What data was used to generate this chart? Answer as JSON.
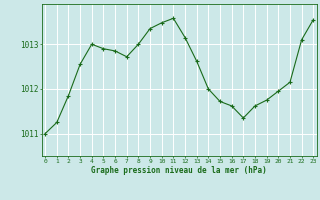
{
  "x": [
    0,
    1,
    2,
    3,
    4,
    5,
    6,
    7,
    8,
    9,
    10,
    11,
    12,
    13,
    14,
    15,
    16,
    17,
    18,
    19,
    20,
    21,
    22,
    23
  ],
  "y": [
    1011.0,
    1011.25,
    1011.85,
    1012.55,
    1013.0,
    1012.9,
    1012.85,
    1012.72,
    1013.0,
    1013.35,
    1013.48,
    1013.58,
    1013.15,
    1012.62,
    1012.0,
    1011.72,
    1011.62,
    1011.35,
    1011.62,
    1011.75,
    1011.95,
    1012.15,
    1013.1,
    1013.55
  ],
  "line_color": "#1a6b1a",
  "marker": "+",
  "bg_color": "#cce8e8",
  "grid_color": "#ffffff",
  "xlabel": "Graphe pression niveau de la mer (hPa)",
  "xlabel_color": "#1a6b1a",
  "tick_color": "#1a6b1a",
  "yticks": [
    1011,
    1012,
    1013
  ],
  "ylim": [
    1010.5,
    1013.9
  ],
  "xlim": [
    -0.3,
    23.3
  ]
}
